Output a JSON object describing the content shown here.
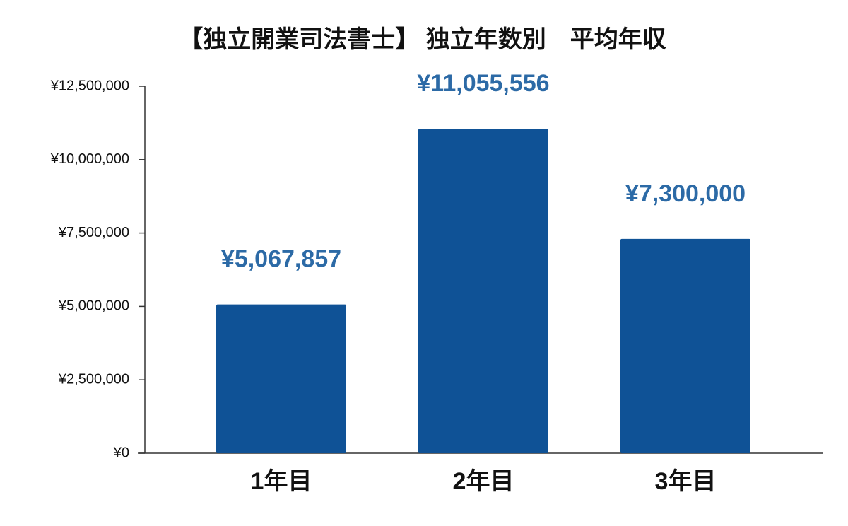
{
  "chart_data": {
    "type": "bar",
    "title": "【独立開業司法書士】 独立年数別　平均年収",
    "categories": [
      "1年目",
      "2年目",
      "3年目"
    ],
    "values": [
      5067857,
      11055556,
      7300000
    ],
    "value_labels": [
      "¥5,067,857",
      "¥11,055,556",
      "¥7,300,000"
    ],
    "color": "#0f5296",
    "ylim": [
      0,
      12500000
    ],
    "yticks": [
      {
        "value": 0,
        "label": "¥0"
      },
      {
        "value": 2500000,
        "label": "¥2,500,000"
      },
      {
        "value": 5000000,
        "label": "¥5,000,000"
      },
      {
        "value": 7500000,
        "label": "¥7,500,000"
      },
      {
        "value": 10000000,
        "label": "¥10,000,000"
      },
      {
        "value": 12500000,
        "label": "¥12,500,000"
      }
    ],
    "grid": false
  }
}
